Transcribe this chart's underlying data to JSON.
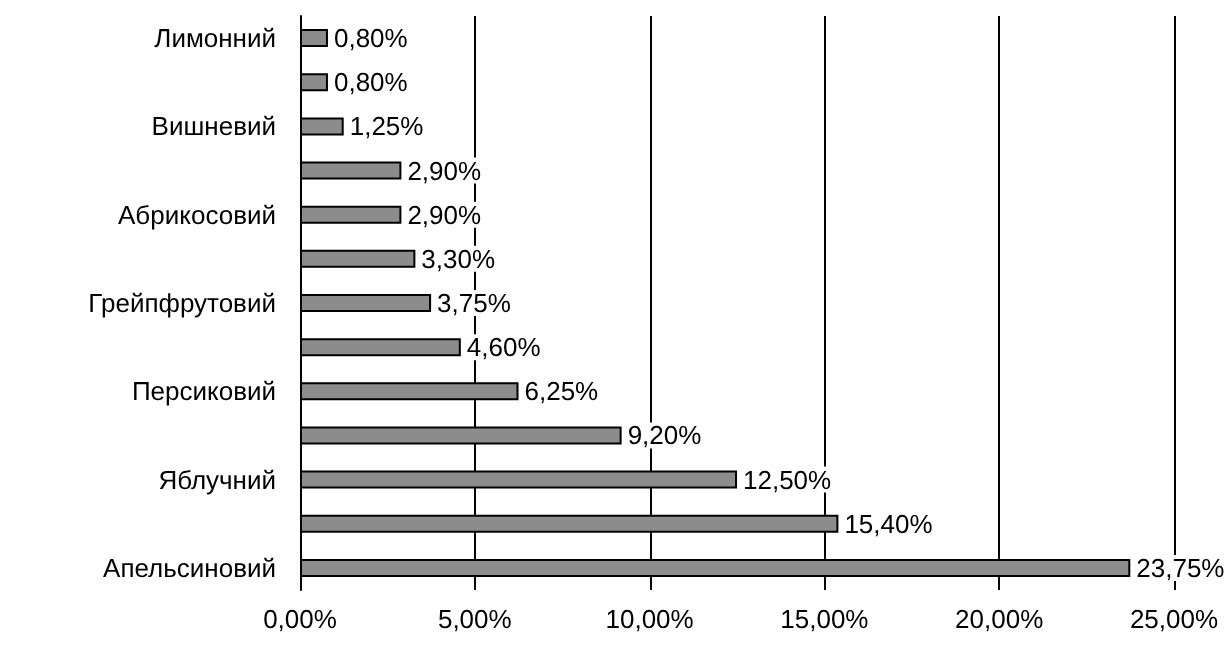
{
  "chart_data": {
    "type": "bar",
    "orientation": "horizontal",
    "categories": [
      "Лимонний",
      null,
      "Вишневий",
      null,
      "Абрикосовий",
      null,
      "Грейпфрутовий",
      null,
      "Персиковий",
      null,
      "Яблучний",
      null,
      "Апельсиновий"
    ],
    "values": [
      0.8,
      0.8,
      1.25,
      2.9,
      2.9,
      3.3,
      3.75,
      4.6,
      6.25,
      9.2,
      12.5,
      15.4,
      23.75
    ],
    "value_labels": [
      "0,80%",
      "0,80%",
      "1,25%",
      "2,90%",
      "2,90%",
      "3,30%",
      "3,75%",
      "4,60%",
      "6,25%",
      "9,20%",
      "12,50%",
      "15,40%",
      "23,75%"
    ],
    "color": "#8c8c8c",
    "xlim": [
      0,
      25
    ],
    "xticks": [
      {
        "value": 0,
        "label": "0,00%"
      },
      {
        "value": 5,
        "label": "5,00%"
      },
      {
        "value": 10,
        "label": "10,00%"
      },
      {
        "value": 15,
        "label": "15,00%"
      },
      {
        "value": 20,
        "label": "20,00%"
      },
      {
        "value": 25,
        "label": "25,00%"
      }
    ],
    "grid": "x"
  }
}
